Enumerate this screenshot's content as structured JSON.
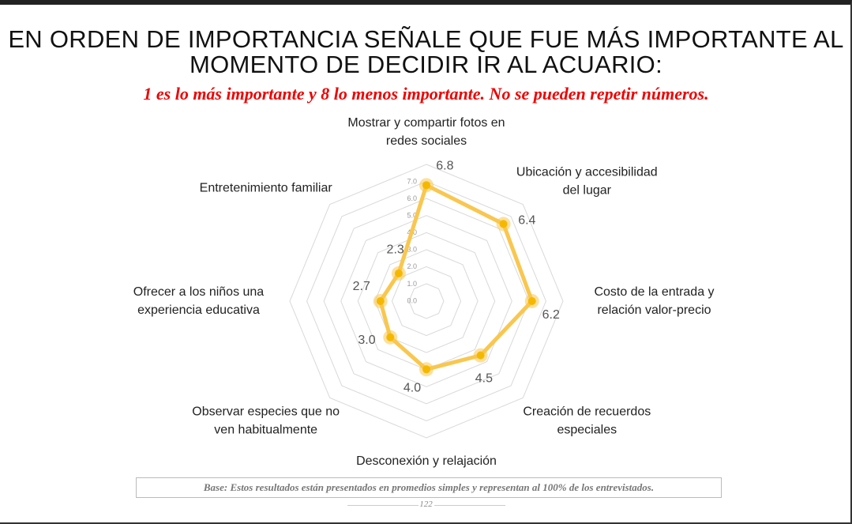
{
  "chart_data": {
    "type": "radar",
    "title": "EN ORDEN DE IMPORTANCIA SEÑALE QUE FUE MÁS IMPORTANTE AL MOMENTO DE DECIDIR IR AL ACUARIO:",
    "subtitle": "1 es lo más importante y 8 lo menos importante. No se pueden repetir números.",
    "categories": [
      "Mostrar y compartir fotos en redes sociales",
      "Ubicación y accesibilidad del lugar",
      "Costo de la entrada y relación valor-precio",
      "Creación de recuerdos especiales",
      "Desconexión y relajación",
      "Observar especies que no ven habitualmente",
      "Ofrecer a los niños una experiencia educativa",
      "Entretenimiento familiar"
    ],
    "values": [
      6.8,
      6.4,
      6.2,
      4.5,
      4.0,
      3.0,
      2.7,
      2.3
    ],
    "value_labels": [
      "6.8",
      "6.4",
      "6.2",
      "4.5",
      "4.0",
      "3.0",
      "2.7",
      "2.3"
    ],
    "color": "#f9c74f",
    "ylim": [
      0,
      7
    ],
    "yticks": [
      {
        "value": 0,
        "label": "0.0"
      },
      {
        "value": 1,
        "label": "1.0"
      },
      {
        "value": 2,
        "label": "2.0"
      },
      {
        "value": 3,
        "label": "3.0"
      },
      {
        "value": 4,
        "label": "4.0"
      },
      {
        "value": 5,
        "label": "5.0"
      },
      {
        "value": 6,
        "label": "6.0"
      },
      {
        "value": 7,
        "label": "7.0"
      }
    ],
    "grid": true,
    "note": "Base: Estos resultados están presentados en promedios simples y representan al 100% de los entrevistados.",
    "page_number": "122"
  }
}
